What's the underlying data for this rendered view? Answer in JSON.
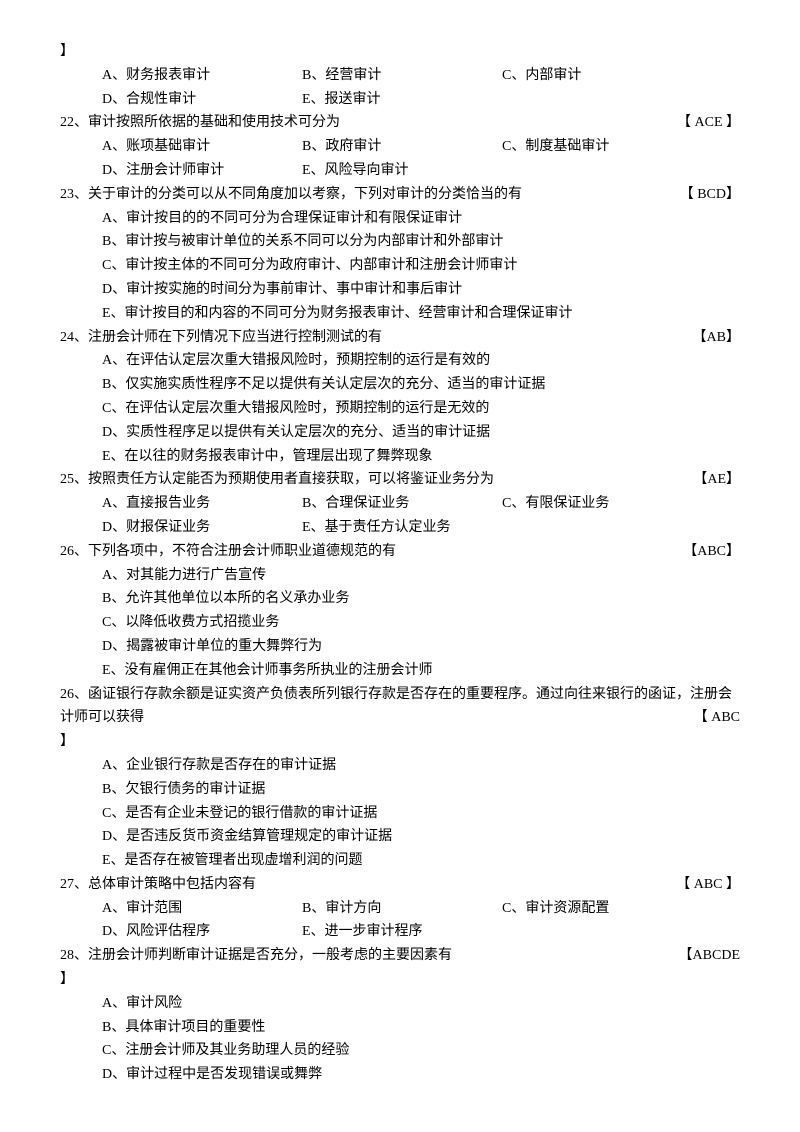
{
  "closing_bracket": "】",
  "q21_opts_r1": {
    "a": "A、财务报表审计",
    "b": "B、经营审计",
    "c": "C、内部审计"
  },
  "q21_opts_r2": {
    "d": "D、合规性审计",
    "e": "E、报送审计"
  },
  "q22": {
    "num": "22、",
    "text": "审计按照所依据的基础和使用技术可分为",
    "ans": "【 ACE 】"
  },
  "q22_opts_r1": {
    "a": "A、账项基础审计",
    "b": "B、政府审计",
    "c": "C、制度基础审计"
  },
  "q22_opts_r2": {
    "d": "D、注册会计师审计",
    "e": "E、风险导向审计"
  },
  "q23": {
    "num": "23、",
    "text": "关于审计的分类可以从不同角度加以考察，下列对审计的分类恰当的有",
    "ans": "【 BCD】"
  },
  "q23_a": "A、审计按目的的不同可分为合理保证审计和有限保证审计",
  "q23_b": "B、审计按与被审计单位的关系不同可以分为内部审计和外部审计",
  "q23_c": "C、审计按主体的不同可分为政府审计、内部审计和注册会计师审计",
  "q23_d": "D、审计按实施的时间分为事前审计、事中审计和事后审计",
  "q23_e": "E、审计按目的和内容的不同可分为财务报表审计、经营审计和合理保证审计",
  "q24": {
    "num": "24、",
    "text": "注册会计师在下列情况下应当进行控制测试的有",
    "ans": "【AB】"
  },
  "q24_a": "A、在评估认定层次重大错报风险时，预期控制的运行是有效的",
  "q24_b": "B、仅实施实质性程序不足以提供有关认定层次的充分、适当的审计证据",
  "q24_c": "C、在评估认定层次重大错报风险时，预期控制的运行是无效的",
  "q24_d": "D、实质性程序足以提供有关认定层次的充分、适当的审计证据",
  "q24_e": "E、在以往的财务报表审计中，管理层出现了舞弊现象",
  "q25": {
    "num": "25、",
    "text": "按照责任方认定能否为预期使用者直接获取，可以将鉴证业务分为",
    "ans": "【AE】"
  },
  "q25_opts_r1": {
    "a": "A、直接报告业务",
    "b": "B、合理保证业务",
    "c": "C、有限保证业务"
  },
  "q25_opts_r2": {
    "d": "D、财报保证业务",
    "e": "E、基于责任方认定业务"
  },
  "q26": {
    "num": "26、",
    "text": "下列各项中，不符合注册会计师职业道德规范的有",
    "ans": "【ABC】"
  },
  "q26_a": "A、对其能力进行广告宣传",
  "q26_b": "B、允许其他单位以本所的名义承办业务",
  "q26_c": "C、以降低收费方式招揽业务",
  "q26_d": "D、揭露被审计单位的重大舞弊行为",
  "q26_e": "E、没有雇佣正在其他会计师事务所执业的注册会计师",
  "q26b": {
    "num": "26、",
    "text": "函证银行存款余额是证实资产负债表所列银行存款是否存在的重要程序。通过向往来银行的函证，注册会计师可以获得",
    "ans": "【 ABC"
  },
  "q26b_a": "A、企业银行存款是否存在的审计证据",
  "q26b_b": "B、欠银行债务的审计证据",
  "q26b_c": "C、是否有企业未登记的银行借款的审计证据",
  "q26b_d": "D、是否违反货币资金结算管理规定的审计证据",
  "q26b_e": "E、是否存在被管理者出现虚增利润的问题",
  "q27": {
    "num": "27、",
    "text": "总体审计策略中包括内容有",
    "ans": "【 ABC 】"
  },
  "q27_opts_r1": {
    "a": "A、审计范围",
    "b": "B、审计方向",
    "c": "C、审计资源配置"
  },
  "q27_opts_r2": {
    "d": "D、风险评估程序",
    "e": "E、进一步审计程序"
  },
  "q28": {
    "num": "28、",
    "text": "注册会计师判断审计证据是否充分，一般考虑的主要因素有",
    "ans": "【ABCDE"
  },
  "q28_a": "A、审计风险",
  "q28_b": "B、具体审计项目的重要性",
  "q28_c": "C、注册会计师及其业务助理人员的经验",
  "q28_d": "D、审计过程中是否发现错误或舞弊"
}
